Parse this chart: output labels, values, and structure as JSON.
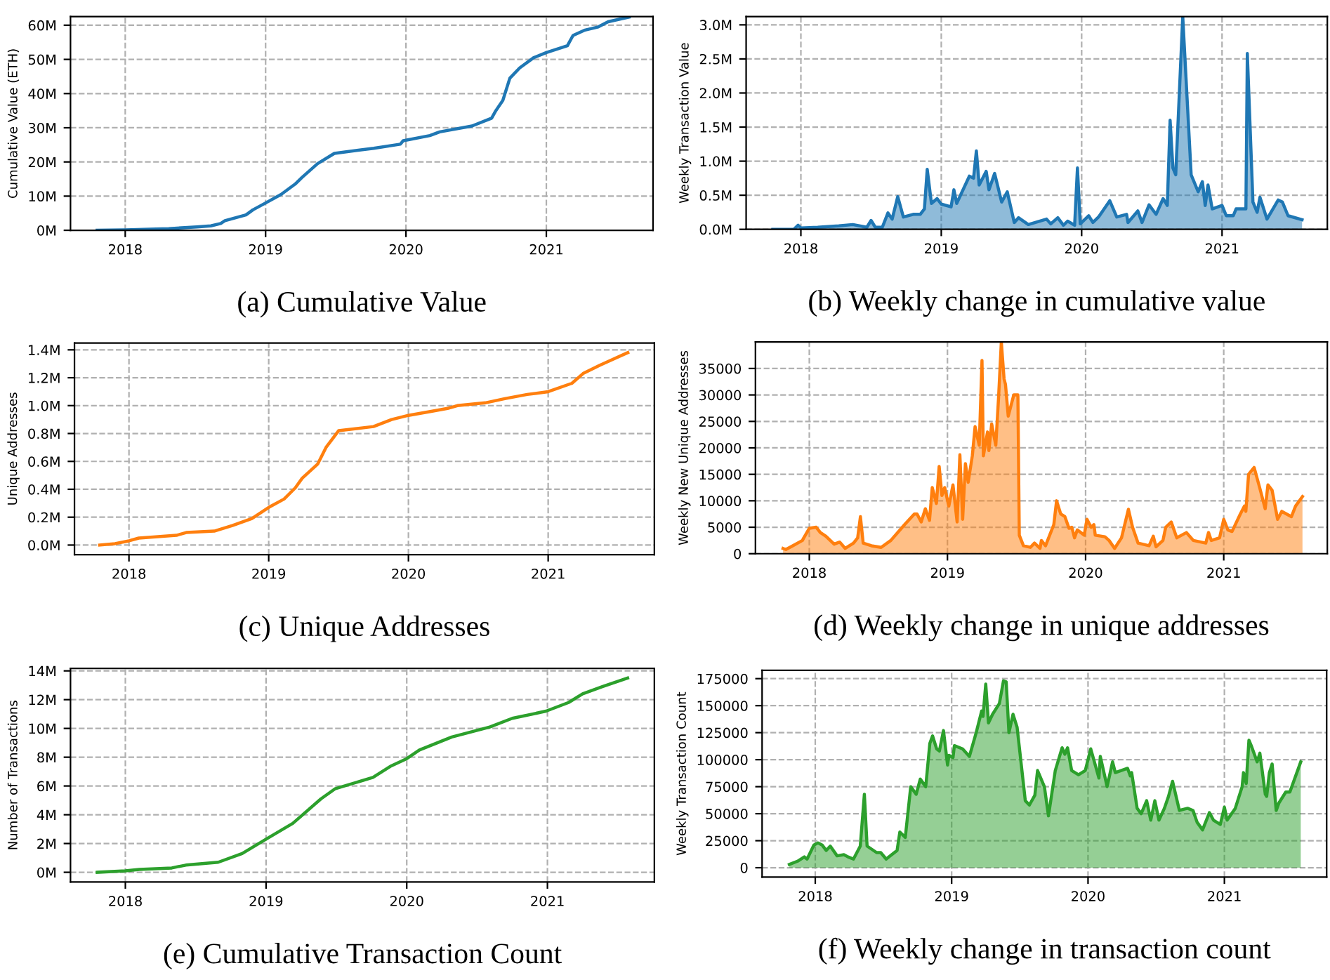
{
  "chart_data": [
    {
      "type": "line",
      "title": "(a) Cumulative Value",
      "ylabel": "Cumulative Value (ETH)",
      "grid": true,
      "xlim": [
        2017.61,
        2021.76
      ],
      "xticks": [
        2018,
        2019,
        2020,
        2021
      ],
      "ylim": [
        0,
        62500000
      ],
      "yticks": [
        {
          "value": 0,
          "label": "0M"
        },
        {
          "value": 10000000,
          "label": "10M"
        },
        {
          "value": 20000000,
          "label": "20M"
        },
        {
          "value": 30000000,
          "label": "30M"
        },
        {
          "value": 40000000,
          "label": "40M"
        },
        {
          "value": 50000000,
          "label": "50M"
        },
        {
          "value": 60000000,
          "label": "60M"
        }
      ],
      "series": [
        {
          "color": "#1f77b4",
          "x": [
            2017.8,
            2018.0,
            2018.31,
            2018.51,
            2018.61,
            2018.68,
            2018.71,
            2018.86,
            2018.91,
            2019.0,
            2019.11,
            2019.21,
            2019.26,
            2019.37,
            2019.49,
            2019.77,
            2019.96,
            2019.98,
            2020.17,
            2020.24,
            2020.47,
            2020.61,
            2020.64,
            2020.69,
            2020.74,
            2020.81,
            2020.91,
            2021.0,
            2021.15,
            2021.19,
            2021.27,
            2021.37,
            2021.44,
            2021.59
          ],
          "values": [
            0,
            100000,
            500000,
            1000000,
            1300000,
            2000000,
            2800000,
            4500000,
            6000000,
            8000000,
            10500000,
            13500000,
            15500000,
            19500000,
            22500000,
            24000000,
            25200000,
            26200000,
            27700000,
            28800000,
            30500000,
            32800000,
            35000000,
            38000000,
            44500000,
            47500000,
            50500000,
            52000000,
            54000000,
            57000000,
            58500000,
            59500000,
            61000000,
            62400000
          ]
        }
      ]
    },
    {
      "type": "area",
      "title": "(b) Weekly change in cumulative value",
      "ylabel": "Weekly Transaction Value",
      "grid": true,
      "xlim": [
        2017.61,
        2021.75
      ],
      "xticks": [
        2018,
        2019,
        2020,
        2021
      ],
      "ylim": [
        0,
        3120000
      ],
      "yticks": [
        {
          "value": 0,
          "label": "0.0M"
        },
        {
          "value": 500000,
          "label": "0.5M"
        },
        {
          "value": 1000000,
          "label": "1.0M"
        },
        {
          "value": 1500000,
          "label": "1.5M"
        },
        {
          "value": 2000000,
          "label": "2.0M"
        },
        {
          "value": 2500000,
          "label": "2.5M"
        },
        {
          "value": 3000000,
          "label": "3.0M"
        }
      ],
      "series": [
        {
          "color": "#1f77b4",
          "x": [
            2017.8,
            2017.95,
            2017.98,
            2018.0,
            2018.12,
            2018.27,
            2018.37,
            2018.47,
            2018.5,
            2018.53,
            2018.58,
            2018.62,
            2018.65,
            2018.69,
            2018.73,
            2018.8,
            2018.85,
            2018.88,
            2018.9,
            2018.93,
            2018.97,
            2019.0,
            2019.07,
            2019.09,
            2019.11,
            2019.2,
            2019.23,
            2019.25,
            2019.27,
            2019.32,
            2019.34,
            2019.38,
            2019.43,
            2019.47,
            2019.52,
            2019.55,
            2019.62,
            2019.75,
            2019.78,
            2019.83,
            2019.87,
            2019.9,
            2019.95,
            2019.97,
            2019.99,
            2020.05,
            2020.08,
            2020.12,
            2020.2,
            2020.25,
            2020.32,
            2020.33,
            2020.4,
            2020.43,
            2020.48,
            2020.53,
            2020.58,
            2020.61,
            2020.63,
            2020.65,
            2020.67,
            2020.72,
            2020.78,
            2020.83,
            2020.86,
            2020.88,
            2020.9,
            2020.93,
            2021.0,
            2021.03,
            2021.08,
            2021.1,
            2021.17,
            2021.18,
            2021.22,
            2021.25,
            2021.27,
            2021.32,
            2021.4,
            2021.43,
            2021.47,
            2021.57
          ],
          "values": [
            0,
            0,
            60000,
            20000,
            30000,
            50000,
            70000,
            30000,
            130000,
            30000,
            30000,
            240000,
            150000,
            480000,
            180000,
            220000,
            220000,
            300000,
            880000,
            380000,
            450000,
            370000,
            330000,
            580000,
            380000,
            780000,
            750000,
            1150000,
            650000,
            850000,
            580000,
            820000,
            400000,
            550000,
            100000,
            170000,
            70000,
            150000,
            80000,
            170000,
            60000,
            120000,
            60000,
            900000,
            80000,
            200000,
            100000,
            180000,
            420000,
            180000,
            220000,
            100000,
            270000,
            100000,
            360000,
            220000,
            450000,
            350000,
            1600000,
            900000,
            800000,
            3120000,
            800000,
            550000,
            700000,
            350000,
            650000,
            300000,
            350000,
            200000,
            200000,
            300000,
            300000,
            2580000,
            400000,
            250000,
            470000,
            150000,
            430000,
            400000,
            200000,
            140000
          ]
        }
      ]
    },
    {
      "type": "line",
      "title": "(c) Unique Addresses",
      "ylabel": "Unique Addresses",
      "grid": true,
      "xlim": [
        2017.61,
        2021.76
      ],
      "xticks": [
        2018,
        2019,
        2020,
        2021
      ],
      "ylim": [
        -69000,
        1449000
      ],
      "yticks": [
        {
          "value": 0,
          "label": "0.0M"
        },
        {
          "value": 200000,
          "label": "0.2M"
        },
        {
          "value": 400000,
          "label": "0.4M"
        },
        {
          "value": 600000,
          "label": "0.6M"
        },
        {
          "value": 800000,
          "label": "0.8M"
        },
        {
          "value": 1000000,
          "label": "1.0M"
        },
        {
          "value": 1200000,
          "label": "1.2M"
        },
        {
          "value": 1400000,
          "label": "1.4M"
        }
      ],
      "series": [
        {
          "color": "#ff7f0e",
          "x": [
            2017.79,
            2017.9,
            2018.0,
            2018.07,
            2018.34,
            2018.41,
            2018.61,
            2018.74,
            2018.88,
            2019.0,
            2019.11,
            2019.19,
            2019.24,
            2019.35,
            2019.41,
            2019.5,
            2019.75,
            2019.88,
            2020.0,
            2020.17,
            2020.28,
            2020.35,
            2020.55,
            2020.69,
            2020.85,
            2021.0,
            2021.17,
            2021.25,
            2021.37,
            2021.57
          ],
          "values": [
            0,
            10000,
            30000,
            50000,
            70000,
            90000,
            100000,
            140000,
            190000,
            270000,
            330000,
            410000,
            480000,
            580000,
            700000,
            820000,
            850000,
            900000,
            930000,
            960000,
            980000,
            1000000,
            1020000,
            1050000,
            1080000,
            1100000,
            1160000,
            1230000,
            1290000,
            1380000
          ]
        }
      ]
    },
    {
      "type": "area",
      "title": "(d) Weekly change in unique addresses",
      "ylabel": "Weekly New Unique Addresses",
      "grid": true,
      "xlim": [
        2017.61,
        2021.75
      ],
      "xticks": [
        2018,
        2019,
        2020,
        2021
      ],
      "ylim": [
        0,
        40000
      ],
      "yticks": [
        0,
        5000,
        10000,
        15000,
        20000,
        25000,
        30000,
        35000
      ],
      "series": [
        {
          "color": "#ff7f0e",
          "x": [
            2017.81,
            2017.83,
            2017.88,
            2017.95,
            2017.96,
            2018.0,
            2018.05,
            2018.08,
            2018.12,
            2018.18,
            2018.22,
            2018.26,
            2018.32,
            2018.35,
            2018.37,
            2018.39,
            2018.45,
            2018.52,
            2018.59,
            2018.69,
            2018.76,
            2018.78,
            2018.81,
            2018.84,
            2018.87,
            2018.89,
            2018.92,
            2018.94,
            2018.96,
            2018.98,
            2019.01,
            2019.04,
            2019.07,
            2019.09,
            2019.11,
            2019.13,
            2019.15,
            2019.18,
            2019.2,
            2019.23,
            2019.25,
            2019.26,
            2019.29,
            2019.3,
            2019.32,
            2019.35,
            2019.37,
            2019.39,
            2019.41,
            2019.42,
            2019.44,
            2019.48,
            2019.51,
            2019.52,
            2019.55,
            2019.6,
            2019.63,
            2019.67,
            2019.68,
            2019.71,
            2019.74,
            2019.77,
            2019.79,
            2019.82,
            2019.85,
            2019.88,
            2019.9,
            2019.92,
            2019.94,
            2019.99,
            2020.01,
            2020.04,
            2020.06,
            2020.07,
            2020.14,
            2020.17,
            2020.21,
            2020.26,
            2020.31,
            2020.34,
            2020.38,
            2020.46,
            2020.49,
            2020.51,
            2020.56,
            2020.58,
            2020.62,
            2020.66,
            2020.73,
            2020.78,
            2020.87,
            2020.89,
            2020.91,
            2020.97,
            2021.0,
            2021.03,
            2021.06,
            2021.12,
            2021.15,
            2021.16,
            2021.18,
            2021.22,
            2021.26,
            2021.3,
            2021.32,
            2021.35,
            2021.39,
            2021.42,
            2021.49,
            2021.52,
            2021.57
          ],
          "values": [
            1000,
            800,
            1500,
            2500,
            3000,
            4800,
            5000,
            4000,
            3300,
            1800,
            2200,
            1000,
            2000,
            3000,
            7000,
            2000,
            1500,
            1200,
            2500,
            5500,
            7500,
            7500,
            6000,
            8500,
            6300,
            12500,
            9500,
            16500,
            11000,
            12500,
            9000,
            13000,
            6000,
            18700,
            6500,
            17000,
            13500,
            18500,
            24000,
            20500,
            36500,
            18500,
            23000,
            19500,
            24500,
            20500,
            29500,
            40000,
            33000,
            32000,
            26000,
            30000,
            30000,
            3500,
            1500,
            1200,
            2000,
            1000,
            2500,
            1500,
            3500,
            5500,
            10000,
            7500,
            7000,
            4800,
            5000,
            3000,
            4500,
            3500,
            6500,
            5000,
            5500,
            3500,
            3200,
            2500,
            1000,
            3000,
            8400,
            5000,
            2000,
            1500,
            3300,
            1300,
            2500,
            5000,
            6000,
            3000,
            4000,
            2500,
            2000,
            4000,
            2500,
            3000,
            6500,
            4500,
            4200,
            7500,
            9000,
            8000,
            15000,
            16300,
            12500,
            8500,
            13000,
            12000,
            6500,
            8000,
            7000,
            9000,
            10800
          ]
        }
      ]
    },
    {
      "type": "line",
      "title": "(e) Cumulative Transaction Count",
      "ylabel": "Number of Transactions",
      "grid": true,
      "xlim": [
        2017.61,
        2021.76
      ],
      "xticks": [
        2018,
        2019,
        2020,
        2021
      ],
      "ylim": [
        -675000,
        14175000
      ],
      "yticks": [
        {
          "value": 0,
          "label": "0M"
        },
        {
          "value": 2000000,
          "label": "2M"
        },
        {
          "value": 4000000,
          "label": "4M"
        },
        {
          "value": 6000000,
          "label": "6M"
        },
        {
          "value": 8000000,
          "label": "8M"
        },
        {
          "value": 10000000,
          "label": "10M"
        },
        {
          "value": 12000000,
          "label": "12M"
        },
        {
          "value": 14000000,
          "label": "14M"
        }
      ],
      "series": [
        {
          "color": "#2ca02c",
          "x": [
            2017.8,
            2018.0,
            2018.1,
            2018.33,
            2018.43,
            2018.66,
            2018.83,
            2019.0,
            2019.19,
            2019.39,
            2019.49,
            2019.76,
            2019.89,
            2020.0,
            2020.09,
            2020.32,
            2020.59,
            2020.75,
            2020.99,
            2021.15,
            2021.25,
            2021.39,
            2021.57
          ],
          "values": [
            0,
            100000,
            200000,
            300000,
            500000,
            700000,
            1300000,
            2300000,
            3400000,
            5100000,
            5800000,
            6600000,
            7400000,
            7900000,
            8500000,
            9400000,
            10100000,
            10700000,
            11200000,
            11800000,
            12400000,
            12900000,
            13500000
          ]
        }
      ]
    },
    {
      "type": "area",
      "title": "(f) Weekly change in transaction count",
      "ylabel": "Weekly Transaction Count",
      "grid": true,
      "xlim": [
        2017.61,
        2021.75
      ],
      "xticks": [
        2018,
        2019,
        2020,
        2021
      ],
      "ylim": [
        -8700,
        182700
      ],
      "yticks": [
        0,
        25000,
        50000,
        75000,
        100000,
        125000,
        150000,
        175000
      ],
      "series": [
        {
          "color": "#2ca02c",
          "x": [
            2017.81,
            2017.87,
            2017.92,
            2017.94,
            2017.99,
            2018.02,
            2018.05,
            2018.08,
            2018.11,
            2018.16,
            2018.21,
            2018.24,
            2018.28,
            2018.33,
            2018.36,
            2018.38,
            2018.45,
            2018.48,
            2018.52,
            2018.57,
            2018.6,
            2018.62,
            2018.66,
            2018.7,
            2018.74,
            2018.77,
            2018.81,
            2018.84,
            2018.86,
            2018.89,
            2018.91,
            2018.94,
            2018.97,
            2018.98,
            2019.01,
            2019.02,
            2019.08,
            2019.13,
            2019.18,
            2019.22,
            2019.23,
            2019.25,
            2019.27,
            2019.3,
            2019.35,
            2019.38,
            2019.4,
            2019.42,
            2019.45,
            2019.48,
            2019.54,
            2019.57,
            2019.61,
            2019.63,
            2019.68,
            2019.71,
            2019.76,
            2019.81,
            2019.83,
            2019.85,
            2019.88,
            2019.93,
            2019.98,
            2020.02,
            2020.08,
            2020.09,
            2020.14,
            2020.18,
            2020.2,
            2020.29,
            2020.31,
            2020.32,
            2020.36,
            2020.39,
            2020.43,
            2020.46,
            2020.49,
            2020.52,
            2020.56,
            2020.59,
            2020.62,
            2020.67,
            2020.73,
            2020.77,
            2020.8,
            2020.84,
            2020.89,
            2020.92,
            2020.97,
            2021.0,
            2021.02,
            2021.08,
            2021.13,
            2021.14,
            2021.16,
            2021.18,
            2021.2,
            2021.24,
            2021.26,
            2021.3,
            2021.31,
            2021.33,
            2021.35,
            2021.38,
            2021.4,
            2021.45,
            2021.48,
            2021.56
          ],
          "values": [
            3000,
            6000,
            10000,
            8000,
            21000,
            23000,
            21000,
            16000,
            20000,
            11000,
            12000,
            10000,
            8000,
            20000,
            68000,
            20000,
            14000,
            14000,
            8000,
            13000,
            16000,
            33000,
            28000,
            75000,
            68000,
            82000,
            75000,
            115000,
            122000,
            110000,
            108000,
            127000,
            95000,
            104000,
            102000,
            113000,
            110000,
            103000,
            125000,
            145000,
            140000,
            170000,
            134000,
            142000,
            152000,
            173000,
            172000,
            125000,
            142000,
            130000,
            62000,
            58000,
            67000,
            90000,
            75000,
            48000,
            90000,
            111000,
            105000,
            111000,
            90000,
            86000,
            90000,
            110000,
            83000,
            103000,
            75000,
            98000,
            88000,
            92000,
            85000,
            88000,
            55000,
            50000,
            62000,
            44000,
            62000,
            44000,
            55000,
            66000,
            80000,
            53000,
            55000,
            53000,
            42000,
            35000,
            51000,
            44000,
            40000,
            56000,
            44000,
            55000,
            75000,
            88000,
            78000,
            118000,
            112000,
            98000,
            106000,
            68000,
            66000,
            88000,
            96000,
            53000,
            60000,
            70000,
            70000,
            98000
          ]
        }
      ]
    }
  ]
}
